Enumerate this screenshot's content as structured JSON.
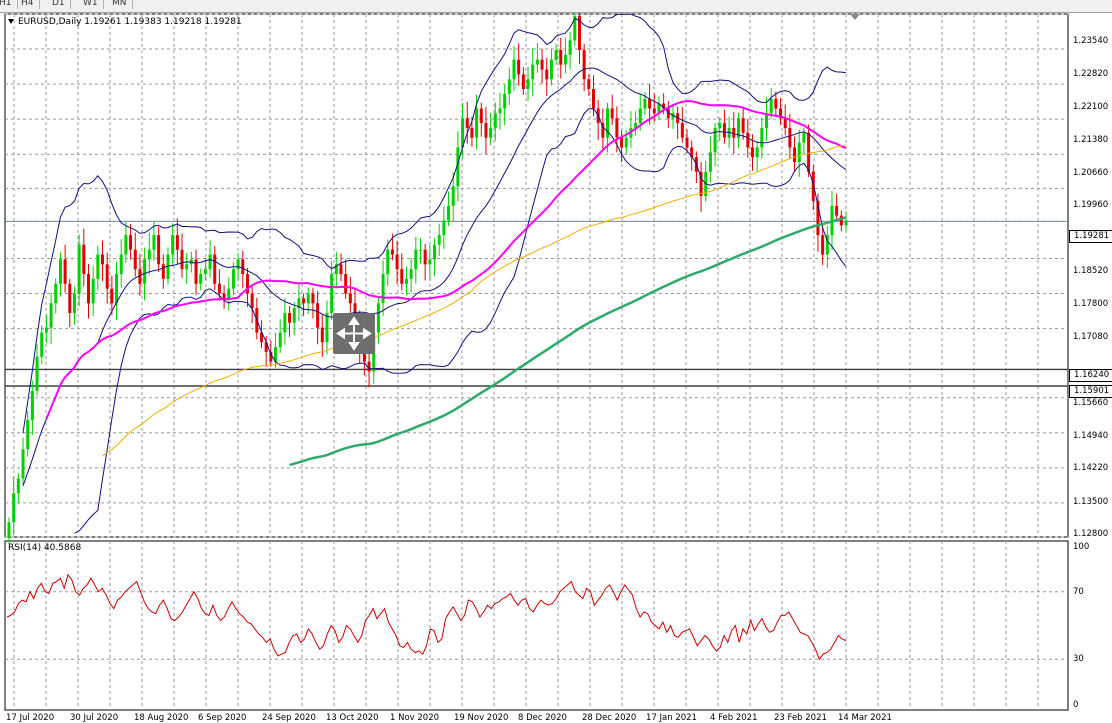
{
  "timeframes": [
    "H1",
    "H4",
    "D1",
    "W1",
    "MN"
  ],
  "header": {
    "symbol_line": "EURUSD,Daily  1.19261 1.19383 1.19218 1.19281"
  },
  "rsi": {
    "label": "RSI(14) 40.5868",
    "levels": [
      "100",
      "70",
      "30",
      "0"
    ],
    "values": [
      55,
      56,
      58,
      63,
      65,
      64,
      70,
      66,
      72,
      75,
      70,
      69,
      75,
      76,
      78,
      72,
      80,
      77,
      70,
      68,
      72,
      74,
      78,
      74,
      70,
      72,
      68,
      63,
      60,
      65,
      67,
      70,
      72,
      74,
      76,
      70,
      64,
      60,
      58,
      57,
      62,
      65,
      60,
      54,
      53,
      55,
      58,
      62,
      66,
      70,
      66,
      60,
      57,
      56,
      62,
      56,
      53,
      55,
      60,
      64,
      60,
      57,
      55,
      52,
      51,
      48,
      45,
      43,
      40,
      42,
      36,
      32,
      33,
      34,
      40,
      44,
      45,
      40,
      42,
      48,
      45,
      40,
      36,
      38,
      45,
      50,
      47,
      40,
      43,
      50,
      48,
      44,
      40,
      44,
      53,
      56,
      60,
      54,
      57,
      60,
      52,
      48,
      44,
      38,
      37,
      40,
      36,
      34,
      35,
      33,
      38,
      48,
      47,
      40,
      42,
      54,
      58,
      61,
      57,
      53,
      56,
      65,
      64,
      60,
      55,
      58,
      62,
      60,
      63,
      64,
      66,
      67,
      69,
      65,
      62,
      65,
      66,
      60,
      58,
      62,
      65,
      63,
      62,
      63,
      66,
      70,
      72,
      74,
      76,
      70,
      68,
      66,
      72,
      70,
      62,
      65,
      68,
      72,
      74,
      70,
      65,
      70,
      74,
      71,
      68,
      60,
      55,
      58,
      57,
      52,
      50,
      48,
      52,
      46,
      50,
      44,
      43,
      46,
      47,
      48,
      43,
      38,
      41,
      44,
      42,
      38,
      35,
      37,
      44,
      40,
      47,
      50,
      40,
      48,
      45,
      53,
      47,
      51,
      54,
      49,
      46,
      47,
      52,
      56,
      56,
      58,
      54,
      50,
      46,
      45,
      44,
      40,
      36,
      30,
      33,
      34,
      36,
      40,
      44,
      42,
      41
    ]
  },
  "price_levels": [
    "1.23540",
    "1.22820",
    "1.22100",
    "1.21380",
    "1.20660",
    "1.19960",
    "1.19281",
    "1.18520",
    "1.17800",
    "1.17080",
    "1.16240",
    "1.15901",
    "1.15660",
    "1.14940",
    "1.14220",
    "1.13500",
    "1.12800"
  ],
  "current_price": "1.19281",
  "hline1": "1.16240",
  "hline2": "1.15901",
  "dates": [
    "17 Jul 2020",
    "30 Jul 2020",
    "18 Aug 2020",
    "6 Sep 2020",
    "24 Sep 2020",
    "13 Oct 2020",
    "1 Nov 2020",
    "19 Nov 2020",
    "8 Dec 2020",
    "28 Dec 2020",
    "17 Jan 2021",
    "4 Feb 2021",
    "23 Feb 2021",
    "14 Mar 2021"
  ],
  "colors": {
    "bull": "#00d000",
    "bear": "#e00000",
    "ma_fast": "#ff00ff",
    "ma_mid": "#f0b000",
    "ma_slow": "#2eaa6a",
    "bands": "#101080",
    "rsi": "#cc0000"
  },
  "chart_data": {
    "type": "candlestick",
    "symbol": "EURUSD",
    "timeframe": "Daily",
    "ohlc_last": {
      "open": 1.19261,
      "high": 1.19383,
      "low": 1.19218,
      "close": 1.19281
    },
    "ylim": [
      1.128,
      1.2354
    ],
    "close_approx": [
      1.131,
      1.137,
      1.14,
      1.146,
      1.152,
      1.158,
      1.165,
      1.17,
      1.171,
      1.176,
      1.18,
      1.185,
      1.18,
      1.174,
      1.178,
      1.188,
      1.182,
      1.176,
      1.181,
      1.186,
      1.184,
      1.179,
      1.176,
      1.182,
      1.186,
      1.19,
      1.187,
      1.183,
      1.18,
      1.185,
      1.187,
      1.19,
      1.184,
      1.181,
      1.186,
      1.19,
      1.187,
      1.183,
      1.184,
      1.185,
      1.18,
      1.182,
      1.183,
      1.186,
      1.18,
      1.178,
      1.177,
      1.179,
      1.183,
      1.185,
      1.182,
      1.178,
      1.175,
      1.17,
      1.168,
      1.166,
      1.164,
      1.167,
      1.17,
      1.174,
      1.172,
      1.175,
      1.177,
      1.176,
      1.178,
      1.176,
      1.171,
      1.168,
      1.174,
      1.182,
      1.184,
      1.182,
      1.178,
      1.176,
      1.172,
      1.167,
      1.164,
      1.162,
      1.17,
      1.176,
      1.182,
      1.187,
      1.186,
      1.183,
      1.18,
      1.181,
      1.183,
      1.187,
      1.187,
      1.184,
      1.185,
      1.188,
      1.19,
      1.193,
      1.196,
      1.2,
      1.208,
      1.214,
      1.212,
      1.21,
      1.216,
      1.213,
      1.21,
      1.212,
      1.215,
      1.216,
      1.219,
      1.222,
      1.226,
      1.223,
      1.22,
      1.222,
      1.225,
      1.226,
      1.224,
      1.222,
      1.226,
      1.228,
      1.225,
      1.227,
      1.23,
      1.235,
      1.228,
      1.222,
      1.22,
      1.216,
      1.213,
      1.21,
      1.216,
      1.214,
      1.21,
      1.208,
      1.21,
      1.212,
      1.213,
      1.216,
      1.218,
      1.216,
      1.215,
      1.217,
      1.216,
      1.214,
      1.215,
      1.213,
      1.21,
      1.208,
      1.206,
      1.203,
      1.198,
      1.203,
      1.207,
      1.212,
      1.213,
      1.21,
      1.212,
      1.21,
      1.214,
      1.211,
      1.208,
      1.206,
      1.208,
      1.212,
      1.215,
      1.218,
      1.216,
      1.214,
      1.212,
      1.208,
      1.205,
      1.209,
      1.211,
      1.203,
      1.197,
      1.19,
      1.186,
      1.19,
      1.196,
      1.194,
      1.192,
      1.193
    ]
  }
}
